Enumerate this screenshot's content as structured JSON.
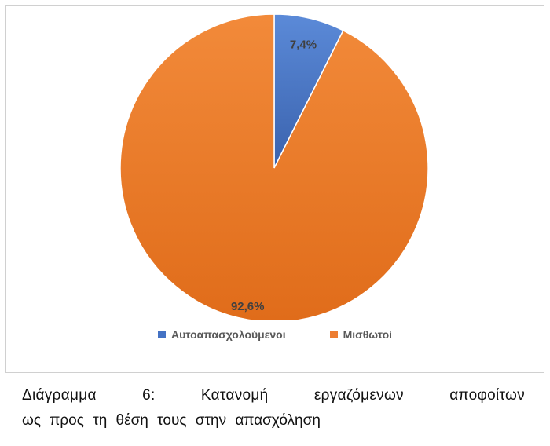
{
  "chart_data": {
    "type": "pie",
    "categories": [
      "Αυτοαπασχολούμενοι",
      "Μισθωτοί"
    ],
    "values": [
      7.4,
      92.6
    ],
    "data_labels": [
      "7,4%",
      "92,6%"
    ],
    "colors": [
      "#4472c4",
      "#ed7d31"
    ],
    "legend_placement": "bottom",
    "start_angle_deg": 0,
    "direction": "clockwise"
  },
  "caption": {
    "line1": "Διάγραμμα 6: Κατανομή εργαζόμενων αποφοίτων",
    "line2": "ως προς τη θέση τους στην απασχόληση"
  }
}
